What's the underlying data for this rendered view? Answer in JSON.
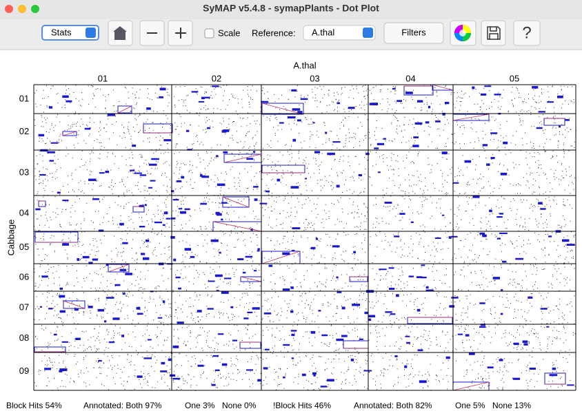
{
  "window": {
    "title": "SyMAP v5.4.8 - symapPlants - Dot Plot"
  },
  "toolbar": {
    "stats": "Stats",
    "scale": "Scale",
    "reference_label": "Reference:",
    "reference": "A.thal",
    "filters": "Filters"
  },
  "plot": {
    "x_title": "A.thal",
    "y_title": "Cabbage",
    "columns": [
      "01",
      "02",
      "03",
      "04",
      "05"
    ],
    "rows": [
      "01",
      "02",
      "03",
      "04",
      "05",
      "06",
      "07",
      "08",
      "09"
    ]
  },
  "status": [
    "Block Hits 54%",
    "Annotated: Both 97%",
    "One 3%",
    "None 0%",
    "!Block Hits 46%",
    "Annotated: Both 82%",
    "One 5%",
    "None 13%"
  ]
}
